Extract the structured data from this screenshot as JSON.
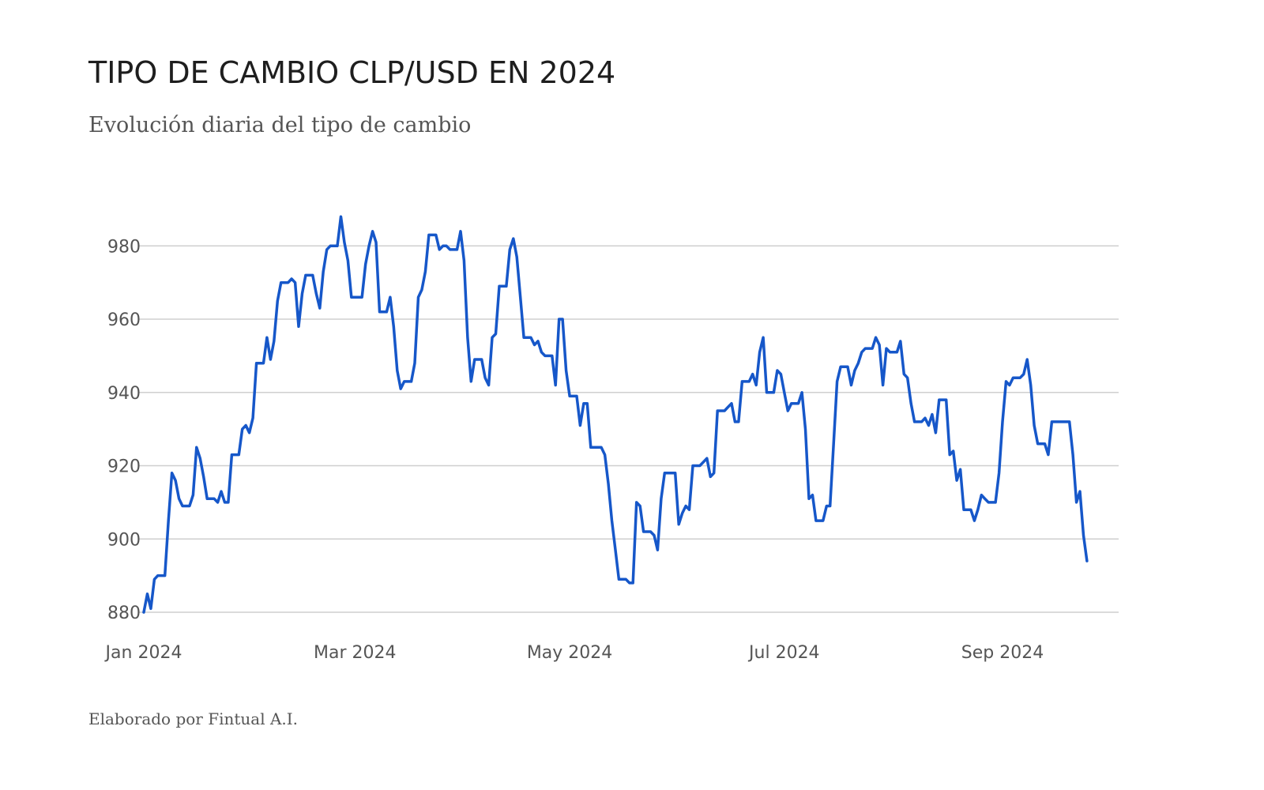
{
  "title": "TIPO DE CAMBIO CLP/USD EN 2024",
  "subtitle": "Evolución diaria del tipo de cambio",
  "footer": "Elaborado por Fintual A.I.",
  "colors": {
    "line": "#1657c9",
    "grid": "#cfcfcf",
    "label": "#555555"
  },
  "chart_data": {
    "type": "line",
    "title": "TIPO DE CAMBIO CLP/USD EN 2024",
    "subtitle": "Evolución diaria del tipo de cambio",
    "xlabel": "",
    "ylabel": "",
    "ylim": [
      880,
      990
    ],
    "yticks": [
      880,
      900,
      920,
      940,
      960,
      980
    ],
    "x_start": "2024-01-01",
    "x_end": "2024-09-30",
    "xticks": [
      {
        "label": "Jan 2024",
        "day": 0
      },
      {
        "label": "Mar 2024",
        "day": 60
      },
      {
        "label": "May 2024",
        "day": 121
      },
      {
        "label": "Jul 2024",
        "day": 182
      },
      {
        "label": "Sep 2024",
        "day": 244
      }
    ],
    "grid": true,
    "legend": "none",
    "series": [
      {
        "name": "CLP/USD",
        "points": [
          [
            0,
            880
          ],
          [
            1,
            885
          ],
          [
            2,
            881
          ],
          [
            3,
            889
          ],
          [
            4,
            890
          ],
          [
            6,
            890
          ],
          [
            7,
            905
          ],
          [
            8,
            918
          ],
          [
            9,
            916
          ],
          [
            10,
            911
          ],
          [
            11,
            909
          ],
          [
            13,
            909
          ],
          [
            14,
            912
          ],
          [
            15,
            925
          ],
          [
            16,
            922
          ],
          [
            17,
            917
          ],
          [
            18,
            911
          ],
          [
            20,
            911
          ],
          [
            21,
            910
          ],
          [
            22,
            913
          ],
          [
            23,
            910
          ],
          [
            24,
            910
          ],
          [
            25,
            923
          ],
          [
            27,
            923
          ],
          [
            28,
            930
          ],
          [
            29,
            931
          ],
          [
            30,
            929
          ],
          [
            31,
            933
          ],
          [
            32,
            948
          ],
          [
            34,
            948
          ],
          [
            35,
            955
          ],
          [
            36,
            949
          ],
          [
            37,
            954
          ],
          [
            38,
            965
          ],
          [
            39,
            970
          ],
          [
            41,
            970
          ],
          [
            42,
            971
          ],
          [
            43,
            970
          ],
          [
            44,
            958
          ],
          [
            45,
            967
          ],
          [
            46,
            972
          ],
          [
            48,
            972
          ],
          [
            49,
            967
          ],
          [
            50,
            963
          ],
          [
            51,
            973
          ],
          [
            52,
            979
          ],
          [
            53,
            980
          ],
          [
            55,
            980
          ],
          [
            56,
            988
          ],
          [
            57,
            981
          ],
          [
            58,
            976
          ],
          [
            59,
            966
          ],
          [
            60,
            966
          ],
          [
            62,
            966
          ],
          [
            63,
            975
          ],
          [
            64,
            980
          ],
          [
            65,
            984
          ],
          [
            66,
            981
          ],
          [
            67,
            962
          ],
          [
            69,
            962
          ],
          [
            70,
            966
          ],
          [
            71,
            958
          ],
          [
            72,
            946
          ],
          [
            73,
            941
          ],
          [
            74,
            943
          ],
          [
            76,
            943
          ],
          [
            77,
            948
          ],
          [
            78,
            966
          ],
          [
            79,
            968
          ],
          [
            80,
            973
          ],
          [
            81,
            983
          ],
          [
            83,
            983
          ],
          [
            84,
            979
          ],
          [
            85,
            980
          ],
          [
            86,
            980
          ],
          [
            87,
            979
          ],
          [
            89,
            979
          ],
          [
            90,
            984
          ],
          [
            91,
            976
          ],
          [
            92,
            955
          ],
          [
            93,
            943
          ],
          [
            94,
            949
          ],
          [
            96,
            949
          ],
          [
            97,
            944
          ],
          [
            98,
            942
          ],
          [
            99,
            955
          ],
          [
            100,
            956
          ],
          [
            101,
            969
          ],
          [
            103,
            969
          ],
          [
            104,
            979
          ],
          [
            105,
            982
          ],
          [
            106,
            977
          ],
          [
            107,
            966
          ],
          [
            108,
            955
          ],
          [
            110,
            955
          ],
          [
            111,
            953
          ],
          [
            112,
            954
          ],
          [
            113,
            951
          ],
          [
            114,
            950
          ],
          [
            115,
            950
          ],
          [
            116,
            950
          ],
          [
            117,
            942
          ],
          [
            118,
            960
          ],
          [
            119,
            960
          ],
          [
            120,
            946
          ],
          [
            121,
            939
          ],
          [
            123,
            939
          ],
          [
            124,
            931
          ],
          [
            125,
            937
          ],
          [
            126,
            937
          ],
          [
            127,
            925
          ],
          [
            129,
            925
          ],
          [
            130,
            925
          ],
          [
            131,
            923
          ],
          [
            132,
            915
          ],
          [
            133,
            905
          ],
          [
            134,
            897
          ],
          [
            135,
            889
          ],
          [
            137,
            889
          ],
          [
            138,
            888
          ],
          [
            139,
            888
          ],
          [
            140,
            910
          ],
          [
            141,
            909
          ],
          [
            142,
            902
          ],
          [
            144,
            902
          ],
          [
            145,
            901
          ],
          [
            146,
            897
          ],
          [
            147,
            911
          ],
          [
            148,
            918
          ],
          [
            150,
            918
          ],
          [
            151,
            918
          ],
          [
            152,
            904
          ],
          [
            153,
            907
          ],
          [
            154,
            909
          ],
          [
            155,
            908
          ],
          [
            156,
            920
          ],
          [
            158,
            920
          ],
          [
            159,
            921
          ],
          [
            160,
            922
          ],
          [
            161,
            917
          ],
          [
            162,
            918
          ],
          [
            163,
            935
          ],
          [
            165,
            935
          ],
          [
            166,
            936
          ],
          [
            167,
            937
          ],
          [
            168,
            932
          ],
          [
            169,
            932
          ],
          [
            170,
            943
          ],
          [
            172,
            943
          ],
          [
            173,
            945
          ],
          [
            174,
            942
          ],
          [
            175,
            951
          ],
          [
            176,
            955
          ],
          [
            177,
            940
          ],
          [
            179,
            940
          ],
          [
            180,
            946
          ],
          [
            181,
            945
          ],
          [
            182,
            940
          ],
          [
            183,
            935
          ],
          [
            184,
            937
          ],
          [
            186,
            937
          ],
          [
            187,
            940
          ],
          [
            188,
            930
          ],
          [
            189,
            911
          ],
          [
            190,
            912
          ],
          [
            191,
            905
          ],
          [
            193,
            905
          ],
          [
            194,
            909
          ],
          [
            195,
            909
          ],
          [
            196,
            926
          ],
          [
            197,
            943
          ],
          [
            198,
            947
          ],
          [
            200,
            947
          ],
          [
            201,
            942
          ],
          [
            202,
            946
          ],
          [
            203,
            948
          ],
          [
            204,
            951
          ],
          [
            205,
            952
          ],
          [
            207,
            952
          ],
          [
            208,
            955
          ],
          [
            209,
            953
          ],
          [
            210,
            942
          ],
          [
            211,
            952
          ],
          [
            212,
            951
          ],
          [
            214,
            951
          ],
          [
            215,
            954
          ],
          [
            216,
            945
          ],
          [
            217,
            944
          ],
          [
            218,
            937
          ],
          [
            219,
            932
          ],
          [
            221,
            932
          ],
          [
            222,
            933
          ],
          [
            223,
            931
          ],
          [
            224,
            934
          ],
          [
            225,
            929
          ],
          [
            226,
            938
          ],
          [
            228,
            938
          ],
          [
            229,
            923
          ],
          [
            230,
            924
          ],
          [
            231,
            916
          ],
          [
            232,
            919
          ],
          [
            233,
            908
          ],
          [
            235,
            908
          ],
          [
            236,
            905
          ],
          [
            237,
            908
          ],
          [
            238,
            912
          ],
          [
            239,
            911
          ],
          [
            240,
            910
          ],
          [
            242,
            910
          ],
          [
            243,
            918
          ],
          [
            244,
            932
          ],
          [
            245,
            943
          ],
          [
            246,
            942
          ],
          [
            247,
            944
          ],
          [
            249,
            944
          ],
          [
            250,
            945
          ],
          [
            251,
            949
          ],
          [
            252,
            942
          ],
          [
            253,
            931
          ],
          [
            254,
            926
          ],
          [
            256,
            926
          ],
          [
            257,
            923
          ],
          [
            258,
            932
          ],
          [
            259,
            932
          ],
          [
            263,
            932
          ],
          [
            264,
            923
          ],
          [
            265,
            910
          ],
          [
            266,
            913
          ],
          [
            267,
            901
          ],
          [
            268,
            894
          ]
        ]
      }
    ]
  }
}
